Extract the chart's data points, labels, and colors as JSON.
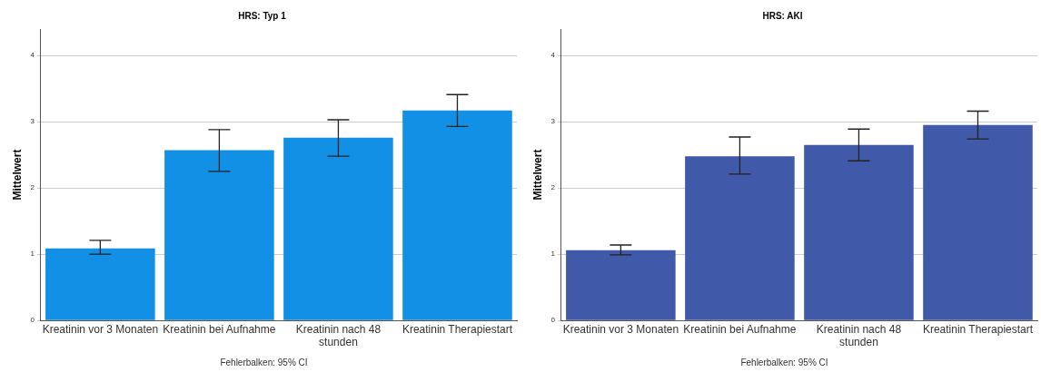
{
  "chart_data": [
    {
      "type": "bar",
      "title": "HRS: Typ 1",
      "ylabel": "Mittelwert",
      "categories": [
        "Kreatinin vor 3 Monaten",
        "Kreatinin bei Aufnahme",
        "Kreatinin nach 48 stunden",
        "Kreatinin Therapiestart"
      ],
      "values": [
        1.09,
        2.57,
        2.76,
        3.17
      ],
      "errors": [
        [
          1.0,
          1.21
        ],
        [
          2.25,
          2.88
        ],
        [
          2.48,
          3.03
        ],
        [
          2.93,
          3.41
        ]
      ],
      "color": "#1190e5",
      "ylim": [
        0,
        4.4
      ],
      "yticks": [
        0,
        1,
        2,
        3,
        4
      ],
      "grid": "y",
      "legend": false,
      "annotations": [
        "Fehlerbalken: 95% CI"
      ]
    },
    {
      "type": "bar",
      "title": "HRS: AKI",
      "ylabel": "Mittelwert",
      "categories": [
        "Kreatinin vor 3 Monaten",
        "Kreatinin bei Aufnahme",
        "Kreatinin nach 48 stunden",
        "Kreatinin Therapiestart"
      ],
      "values": [
        1.06,
        2.48,
        2.65,
        2.95
      ],
      "errors": [
        [
          0.99,
          1.14
        ],
        [
          2.21,
          2.77
        ],
        [
          2.41,
          2.89
        ],
        [
          2.74,
          3.16
        ]
      ],
      "color": "#4059a8",
      "ylim": [
        0,
        4.4
      ],
      "yticks": [
        0,
        1,
        2,
        3,
        4
      ],
      "grid": "y",
      "legend": false,
      "annotations": [
        "Fehlerbalken: 95% CI"
      ]
    }
  ]
}
